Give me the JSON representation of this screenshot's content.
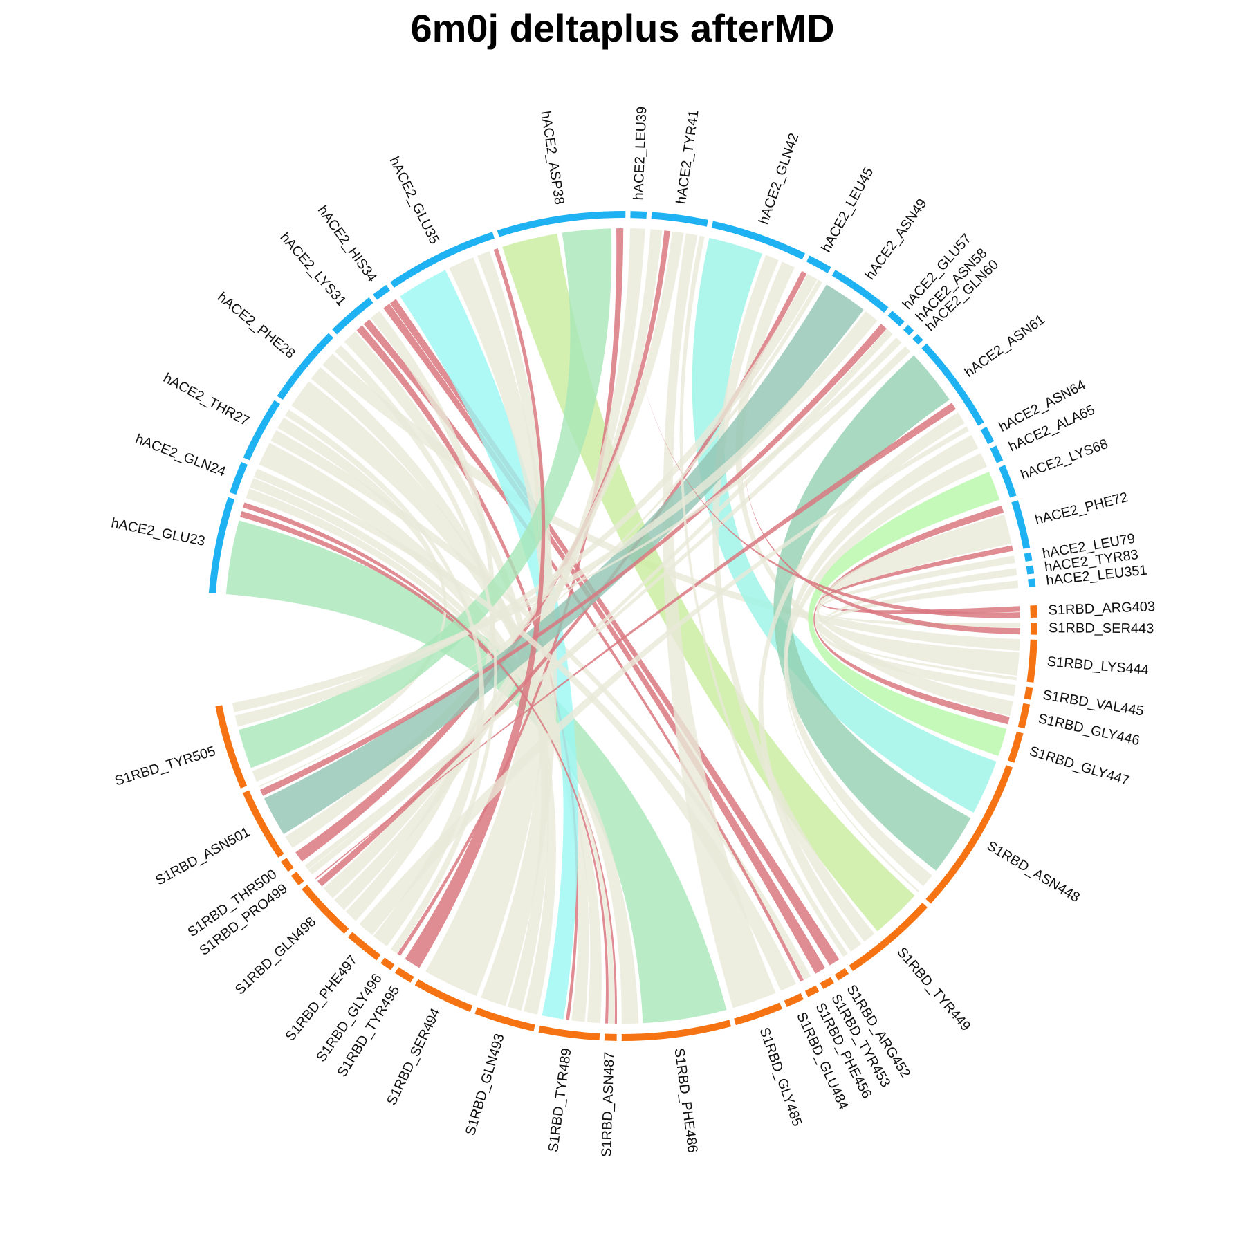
{
  "chart_data": {
    "type": "chord",
    "title": "6m0j deltaplus afterMD",
    "colors": {
      "hACE2_track": "#1eb2f2",
      "S1RBD_track": "#f57312",
      "default_link": "#e8e9d8",
      "red_link": "#d97880"
    },
    "sectors": [
      {
        "name": "S1RBD_ARG403",
        "group": "S1RBD",
        "weight": 1
      },
      {
        "name": "S1RBD_SER443",
        "group": "S1RBD",
        "weight": 1
      },
      {
        "name": "S1RBD_LYS444",
        "group": "S1RBD",
        "weight": 3.5
      },
      {
        "name": "S1RBD_VAL445",
        "group": "S1RBD",
        "weight": 1
      },
      {
        "name": "S1RBD_GLY446",
        "group": "S1RBD",
        "weight": 2
      },
      {
        "name": "S1RBD_GLY447",
        "group": "S1RBD",
        "weight": 2.5
      },
      {
        "name": "S1RBD_ASN448",
        "group": "S1RBD",
        "weight": 13
      },
      {
        "name": "S1RBD_TYR449",
        "group": "S1RBD",
        "weight": 8
      },
      {
        "name": "S1RBD_ARG452",
        "group": "S1RBD",
        "weight": 1
      },
      {
        "name": "S1RBD_TYR453",
        "group": "S1RBD",
        "weight": 1
      },
      {
        "name": "S1RBD_PHE456",
        "group": "S1RBD",
        "weight": 1
      },
      {
        "name": "S1RBD_GLU484",
        "group": "S1RBD",
        "weight": 1.5
      },
      {
        "name": "S1RBD_GLY485",
        "group": "S1RBD",
        "weight": 4
      },
      {
        "name": "S1RBD_PHE486",
        "group": "S1RBD",
        "weight": 9
      },
      {
        "name": "S1RBD_ASN487",
        "group": "S1RBD",
        "weight": 1
      },
      {
        "name": "S1RBD_TYR489",
        "group": "S1RBD",
        "weight": 5
      },
      {
        "name": "S1RBD_GLN493",
        "group": "S1RBD",
        "weight": 5
      },
      {
        "name": "S1RBD_SER494",
        "group": "S1RBD",
        "weight": 5
      },
      {
        "name": "S1RBD_TYR495",
        "group": "S1RBD",
        "weight": 1.5
      },
      {
        "name": "S1RBD_GLY496",
        "group": "S1RBD",
        "weight": 1
      },
      {
        "name": "S1RBD_PHE497",
        "group": "S1RBD",
        "weight": 3
      },
      {
        "name": "S1RBD_GLN498",
        "group": "S1RBD",
        "weight": 5
      },
      {
        "name": "S1RBD_PRO499",
        "group": "S1RBD",
        "weight": 1
      },
      {
        "name": "S1RBD_THR500",
        "group": "S1RBD",
        "weight": 1
      },
      {
        "name": "S1RBD_ASN501",
        "group": "S1RBD",
        "weight": 6
      },
      {
        "name": "S1RBD_TYR505",
        "group": "S1RBD",
        "weight": 7
      },
      {
        "name": "hACE2_GLU23",
        "group": "hACE2",
        "weight": 6
      },
      {
        "name": "hACE2_GLN24",
        "group": "hACE2",
        "weight": 2
      },
      {
        "name": "hACE2_THR27",
        "group": "hACE2",
        "weight": 4
      },
      {
        "name": "hACE2_PHE28",
        "group": "hACE2",
        "weight": 5
      },
      {
        "name": "hACE2_LYS31",
        "group": "hACE2",
        "weight": 3
      },
      {
        "name": "hACE2_HIS34",
        "group": "hACE2",
        "weight": 1
      },
      {
        "name": "hACE2_GLU35",
        "group": "hACE2",
        "weight": 7
      },
      {
        "name": "hACE2_ASP38",
        "group": "hACE2",
        "weight": 8
      },
      {
        "name": "hACE2_LEU39",
        "group": "hACE2",
        "weight": 1
      },
      {
        "name": "hACE2_TYR41",
        "group": "hACE2",
        "weight": 3.5
      },
      {
        "name": "hACE2_GLN42",
        "group": "hACE2",
        "weight": 6
      },
      {
        "name": "hACE2_LEU45",
        "group": "hACE2",
        "weight": 1.5
      },
      {
        "name": "hACE2_ASN49",
        "group": "hACE2",
        "weight": 4
      },
      {
        "name": "hACE2_GLU57",
        "group": "hACE2",
        "weight": 1
      },
      {
        "name": "hACE2_ASN58",
        "group": "hACE2",
        "weight": 0.5
      },
      {
        "name": "hACE2_GLN60",
        "group": "hACE2",
        "weight": 0.5
      },
      {
        "name": "hACE2_ASN61",
        "group": "hACE2",
        "weight": 6
      },
      {
        "name": "hACE2_ASN64",
        "group": "hACE2",
        "weight": 1
      },
      {
        "name": "hACE2_ALA65",
        "group": "hACE2",
        "weight": 1
      },
      {
        "name": "hACE2_LYS68",
        "group": "hACE2",
        "weight": 2
      },
      {
        "name": "hACE2_PHE72",
        "group": "hACE2",
        "weight": 3
      },
      {
        "name": "hACE2_LEU79",
        "group": "hACE2",
        "weight": 0.5
      },
      {
        "name": "hACE2_TYR83",
        "group": "hACE2",
        "weight": 0.5
      },
      {
        "name": "hACE2_LEU351",
        "group": "hACE2",
        "weight": 0.5
      }
    ],
    "links": [
      {
        "from": "hACE2_GLU23",
        "to": "S1RBD_PHE486",
        "value": 5,
        "color": "#a8e6b8"
      },
      {
        "from": "hACE2_GLU23",
        "to": "S1RBD_ASN487",
        "value": 0.4,
        "color": "#d97880"
      },
      {
        "from": "hACE2_GLN24",
        "to": "S1RBD_ASN487",
        "value": 1,
        "color": "#e8e9d8"
      },
      {
        "from": "hACE2_GLN24",
        "to": "S1RBD_PHE486",
        "value": 1,
        "color": "#e8e9d8"
      },
      {
        "from": "hACE2_THR27",
        "to": "S1RBD_TYR489",
        "value": 2,
        "color": "#e8e9d8"
      },
      {
        "from": "hACE2_THR27",
        "to": "S1RBD_PHE456",
        "value": 1,
        "color": "#e8e9d8"
      },
      {
        "from": "hACE2_THR27",
        "to": "S1RBD_TYR505",
        "value": 1,
        "color": "#e8e9d8"
      },
      {
        "from": "hACE2_PHE28",
        "to": "S1RBD_TYR489",
        "value": 2,
        "color": "#e8e9d8"
      },
      {
        "from": "hACE2_PHE28",
        "to": "S1RBD_GLN493",
        "value": 1,
        "color": "#e8e9d8"
      },
      {
        "from": "hACE2_PHE28",
        "to": "S1RBD_LYS444",
        "value": 1,
        "color": "#e8e9d8"
      },
      {
        "from": "hACE2_LYS31",
        "to": "S1RBD_GLN493",
        "value": 1,
        "color": "#e8e9d8"
      },
      {
        "from": "hACE2_LYS31",
        "to": "S1RBD_TYR489",
        "value": 0.5,
        "color": "#d97880"
      },
      {
        "from": "hACE2_LYS31",
        "to": "S1RBD_PHE456",
        "value": 0.5,
        "color": "#d97880"
      },
      {
        "from": "hACE2_LYS31",
        "to": "S1RBD_GLN498",
        "value": 1,
        "color": "#e8e9d8"
      },
      {
        "from": "hACE2_HIS34",
        "to": "S1RBD_TYR453",
        "value": 0.5,
        "color": "#d97880"
      },
      {
        "from": "hACE2_HIS34",
        "to": "S1RBD_ARG452",
        "value": 0.5,
        "color": "#d97880"
      },
      {
        "from": "hACE2_GLU35",
        "to": "S1RBD_TYR489",
        "value": 4,
        "color": "#9af8f4"
      },
      {
        "from": "hACE2_GLU35",
        "to": "S1RBD_GLN493",
        "value": 2,
        "color": "#e8e9d8"
      },
      {
        "from": "hACE2_GLU35",
        "to": "S1RBD_SER494",
        "value": 1,
        "color": "#e8e9d8"
      },
      {
        "from": "hACE2_ASP38",
        "to": "S1RBD_TYR449",
        "value": 4,
        "color": "#c8ec9e"
      },
      {
        "from": "hACE2_ASP38",
        "to": "S1RBD_TYR505",
        "value": 3.5,
        "color": "#a8e6b8"
      },
      {
        "from": "hACE2_ASP38",
        "to": "S1RBD_GLY496",
        "value": 0.5,
        "color": "#d97880"
      },
      {
        "from": "hACE2_LEU39",
        "to": "S1RBD_GLN498",
        "value": 1,
        "color": "#e8e9d8"
      },
      {
        "from": "hACE2_TYR41",
        "to": "S1RBD_GLN498",
        "value": 1,
        "color": "#e8e9d8"
      },
      {
        "from": "hACE2_TYR41",
        "to": "S1RBD_THR500",
        "value": 0.5,
        "color": "#d97880"
      },
      {
        "from": "hACE2_TYR41",
        "to": "S1RBD_ASN501",
        "value": 1,
        "color": "#e8e9d8"
      },
      {
        "from": "hACE2_TYR41",
        "to": "S1RBD_GLY485",
        "value": 1,
        "color": "#e8e9d8"
      },
      {
        "from": "hACE2_GLN42",
        "to": "S1RBD_ASN448",
        "value": 4,
        "color": "#9af4e6"
      },
      {
        "from": "hACE2_GLN42",
        "to": "S1RBD_TYR449",
        "value": 1,
        "color": "#e8e9d8"
      },
      {
        "from": "hACE2_GLN42",
        "to": "S1RBD_GLY446",
        "value": 1,
        "color": "#e8e9d8"
      },
      {
        "from": "hACE2_LEU45",
        "to": "S1RBD_GLN498",
        "value": 0.5,
        "color": "#d97880"
      },
      {
        "from": "hACE2_LEU45",
        "to": "S1RBD_TYR505",
        "value": 1,
        "color": "#e8e9d8"
      },
      {
        "from": "hACE2_ASN49",
        "to": "S1RBD_ASN501",
        "value": 3,
        "color": "#92c4b3"
      },
      {
        "from": "hACE2_ASN49",
        "to": "S1RBD_TYR505",
        "value": 1,
        "color": "#e8e9d8"
      },
      {
        "from": "hACE2_GLU57",
        "to": "S1RBD_ASN501",
        "value": 0.5,
        "color": "#d97880"
      },
      {
        "from": "hACE2_GLU57",
        "to": "S1RBD_PRO499",
        "value": 0.5,
        "color": "#e8e9d8"
      },
      {
        "from": "hACE2_ASN58",
        "to": "S1RBD_TYR505",
        "value": 0.4,
        "color": "#e8e9d8"
      },
      {
        "from": "hACE2_GLN60",
        "to": "S1RBD_PRO499",
        "value": 0.4,
        "color": "#e8e9d8"
      },
      {
        "from": "hACE2_ASN61",
        "to": "S1RBD_ASN448",
        "value": 4.5,
        "color": "#94cfb2"
      },
      {
        "from": "hACE2_ASN61",
        "to": "S1RBD_GLN498",
        "value": 0.6,
        "color": "#d97880"
      },
      {
        "from": "hACE2_ASN61",
        "to": "S1RBD_TYR449",
        "value": 1,
        "color": "#e8e9d8"
      },
      {
        "from": "hACE2_ASN64",
        "to": "S1RBD_ASN448",
        "value": 1,
        "color": "#e8e9d8"
      },
      {
        "from": "hACE2_ALA65",
        "to": "S1RBD_ASN448",
        "value": 1,
        "color": "#e8e9d8"
      },
      {
        "from": "hACE2_LYS68",
        "to": "S1RBD_GLY447",
        "value": 2,
        "color": "#b6f7a8"
      },
      {
        "from": "hACE2_PHE72",
        "to": "S1RBD_GLY446",
        "value": 0.5,
        "color": "#d97880"
      },
      {
        "from": "hACE2_PHE72",
        "to": "S1RBD_LYS444",
        "value": 2,
        "color": "#e8e9d8"
      },
      {
        "from": "hACE2_PHE72",
        "to": "S1RBD_ARG403",
        "value": 0.5,
        "color": "#d97880"
      },
      {
        "from": "hACE2_LEU79",
        "to": "S1RBD_SER443",
        "value": 0.4,
        "color": "#e8e9d8"
      },
      {
        "from": "hACE2_TYR83",
        "to": "S1RBD_VAL445",
        "value": 0.4,
        "color": "#e8e9d8"
      },
      {
        "from": "hACE2_LEU351",
        "to": "S1RBD_LYS444",
        "value": 0.4,
        "color": "#e8e9d8"
      },
      {
        "from": "hACE2_GLU23",
        "to": "S1RBD_ASN487",
        "value": 0.6,
        "color": "#d97880"
      },
      {
        "from": "hACE2_GLN42",
        "to": "S1RBD_SER443",
        "value": 0.5,
        "color": "#d97880"
      },
      {
        "from": "hACE2_ASP38",
        "to": "S1RBD_ARG403",
        "value": 0.5,
        "color": "#d97880"
      },
      {
        "from": "hACE2_GLU35",
        "to": "S1RBD_TYR495",
        "value": 1,
        "color": "#d97880"
      },
      {
        "from": "hACE2_PHE28",
        "to": "S1RBD_GLY496",
        "value": 1,
        "color": "#e8e9d8"
      },
      {
        "from": "hACE2_THR27",
        "to": "S1RBD_PHE497",
        "value": 1,
        "color": "#e8e9d8"
      },
      {
        "from": "hACE2_GLN24",
        "to": "S1RBD_GLU484",
        "value": 1,
        "color": "#e8e9d8"
      },
      {
        "from": "hACE2_TYR41",
        "to": "S1RBD_TYR449",
        "value": 1,
        "color": "#e8e9d8"
      },
      {
        "from": "hACE2_ASN61",
        "to": "S1RBD_PHE497",
        "value": 1,
        "color": "#e8e9d8"
      },
      {
        "from": "hACE2_LEU45",
        "to": "S1RBD_ASN501",
        "value": 0.5,
        "color": "#e8e9d8"
      }
    ]
  }
}
